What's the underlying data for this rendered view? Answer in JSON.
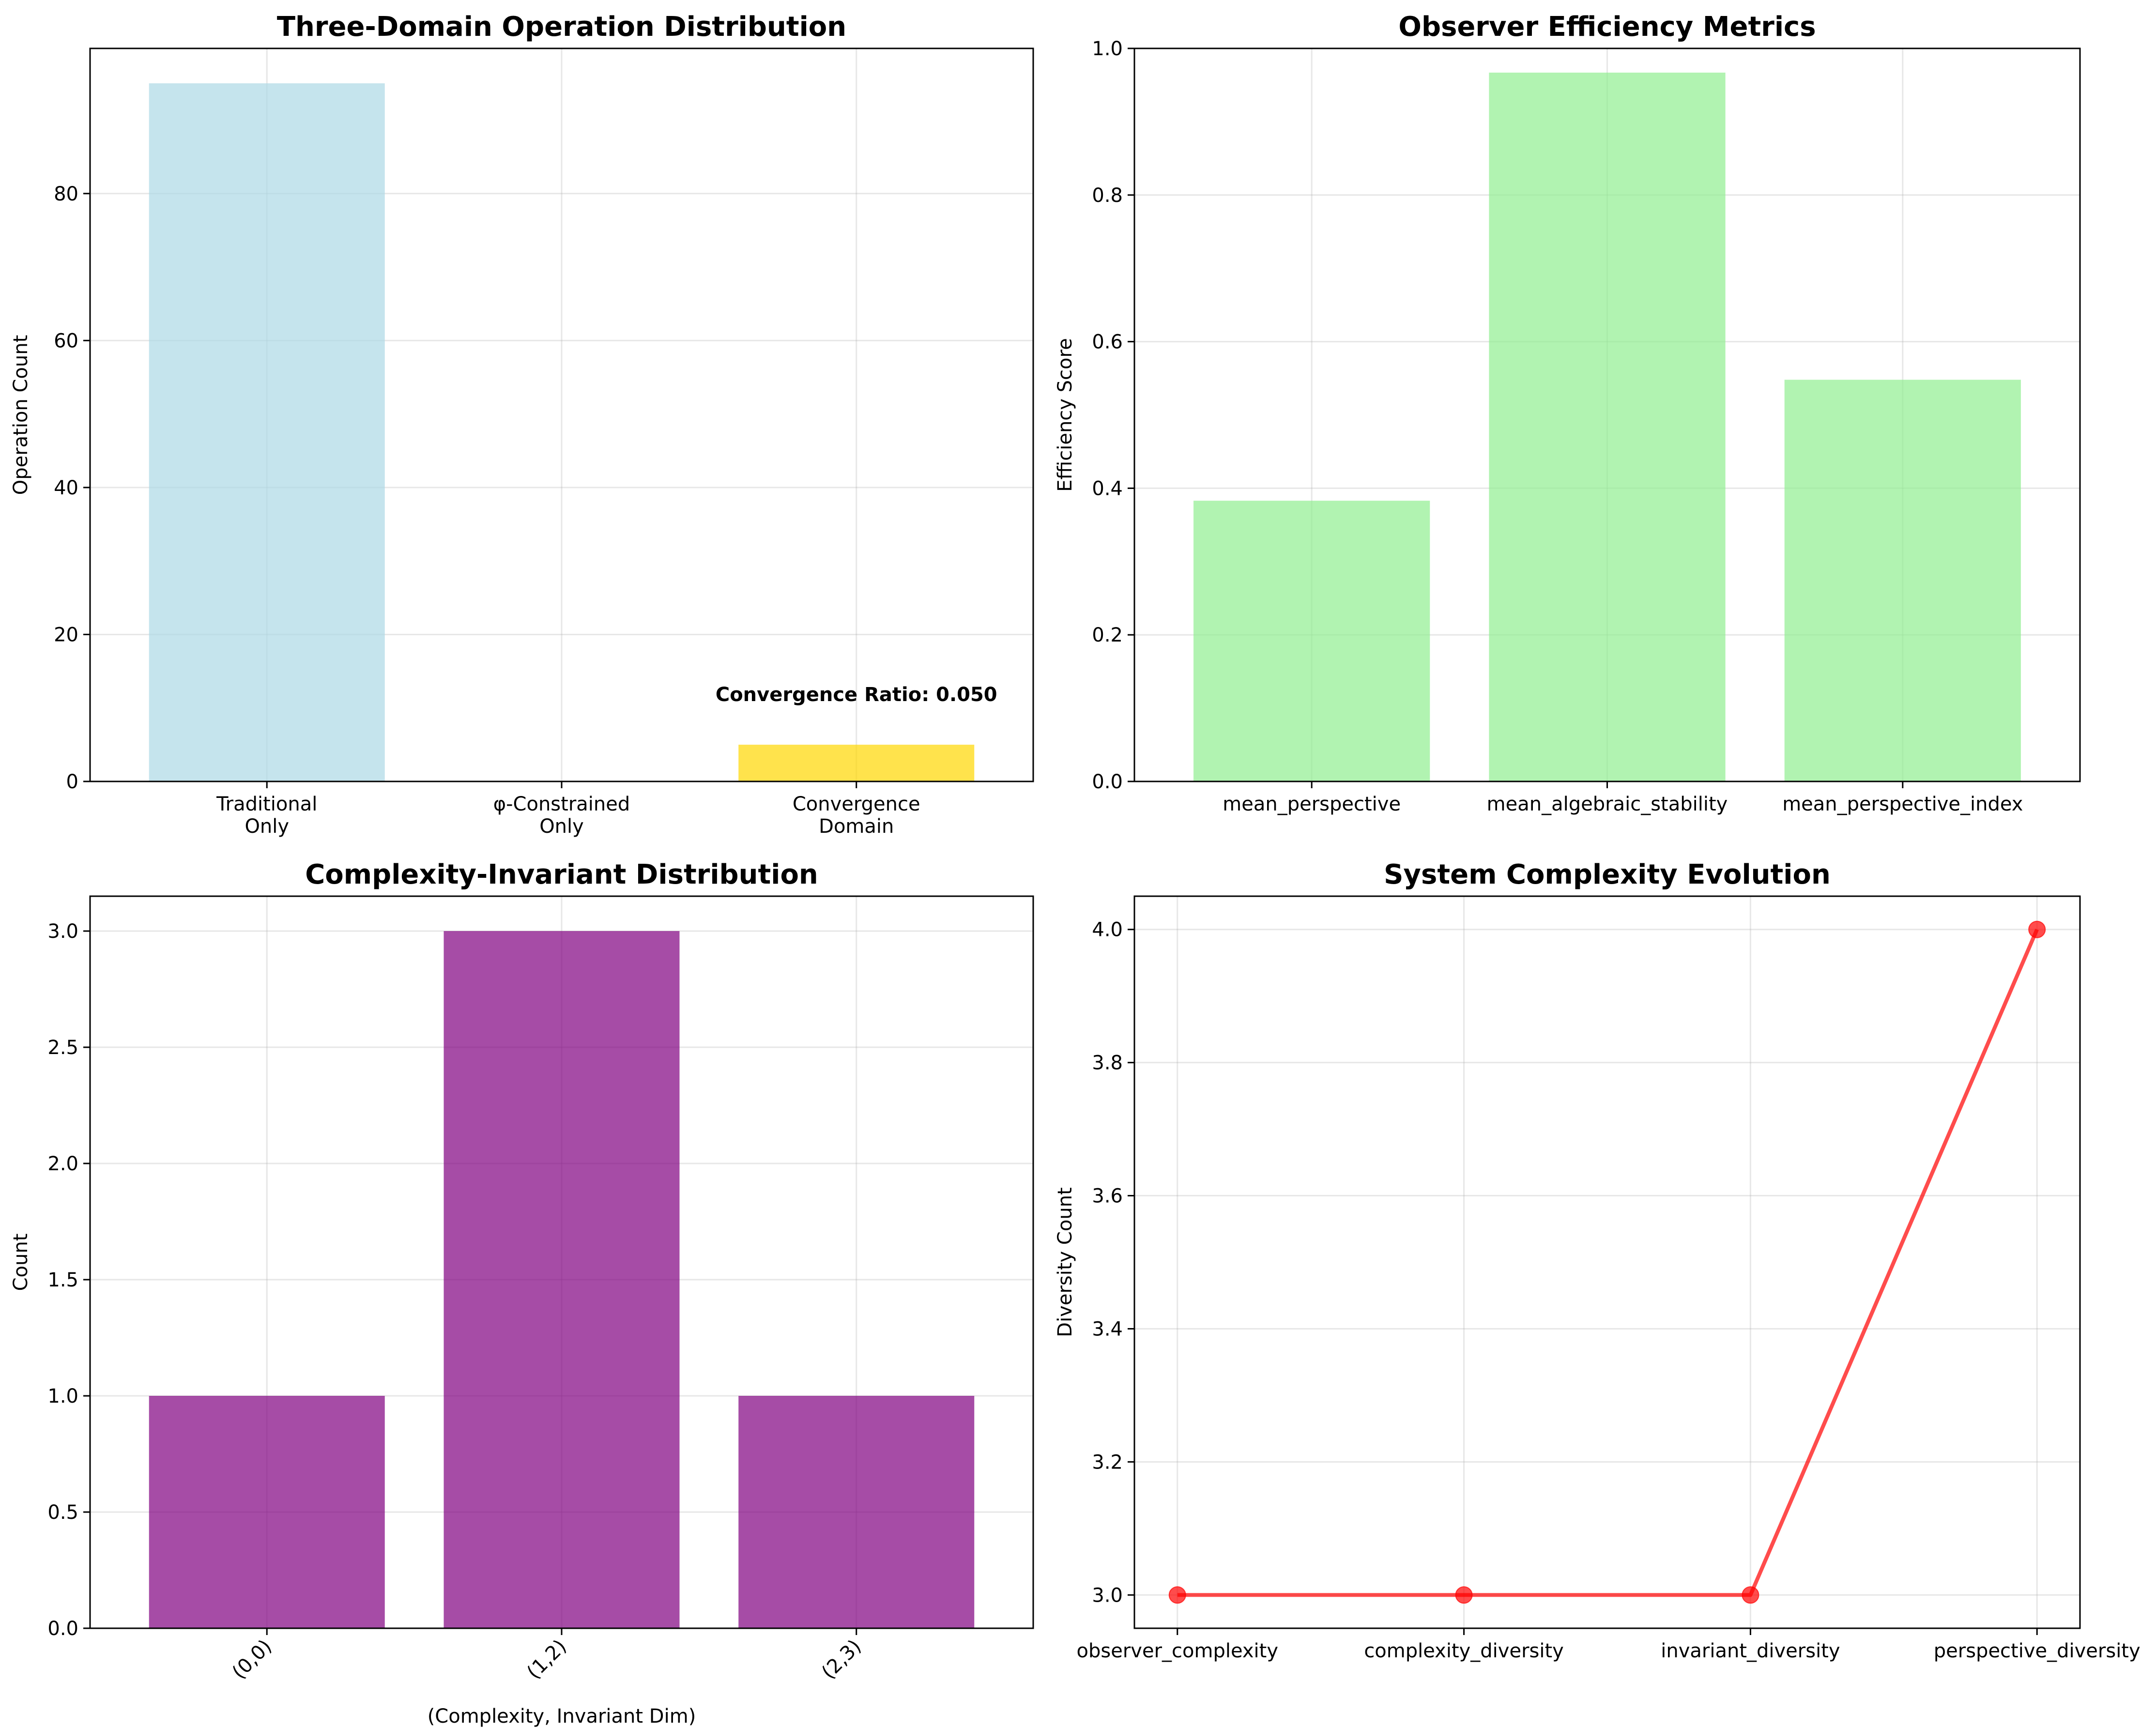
{
  "chart_data": [
    {
      "type": "bar",
      "title": "Three-Domain Operation Distribution",
      "xlabel": "",
      "ylabel": "Operation Count",
      "categories": [
        "Traditional\nOnly",
        "φ-Constrained\nOnly",
        "Convergence\nDomain"
      ],
      "values": [
        95,
        0,
        5
      ],
      "colors": [
        "#add8e6",
        "#87ceeb",
        "#ffd700"
      ],
      "bar_alpha": 0.7,
      "ylim": [
        0,
        99.75
      ],
      "yticks": [
        0,
        20,
        40,
        60,
        80
      ],
      "grid": true,
      "annotation": {
        "text": "Convergence Ratio: 0.050",
        "anchor_category": 2,
        "anchor_value": 10
      }
    },
    {
      "type": "bar",
      "title": "Observer Efficiency Metrics",
      "xlabel": "",
      "ylabel": "Efficiency Score",
      "categories": [
        "mean_perspective",
        "mean_algebraic_stability",
        "mean_perspective_index"
      ],
      "values": [
        0.383,
        0.967,
        0.548
      ],
      "colors": [
        "#90ee90",
        "#90ee90",
        "#90ee90"
      ],
      "bar_alpha": 0.7,
      "ylim": [
        0,
        1.0
      ],
      "yticks": [
        0.0,
        0.2,
        0.4,
        0.6,
        0.8,
        1.0
      ],
      "grid": true
    },
    {
      "type": "bar",
      "title": "Complexity-Invariant Distribution",
      "xlabel": "(Complexity, Invariant Dim)",
      "ylabel": "Count",
      "categories": [
        "(0,0)",
        "(1,2)",
        "(2,3)"
      ],
      "values": [
        1,
        3,
        1
      ],
      "colors": [
        "#800080",
        "#800080",
        "#800080"
      ],
      "bar_alpha": 0.7,
      "ylim": [
        0,
        3.15
      ],
      "yticks": [
        0.0,
        0.5,
        1.0,
        1.5,
        2.0,
        2.5,
        3.0
      ],
      "grid": true,
      "xtick_rotation": 45
    },
    {
      "type": "line",
      "title": "System Complexity Evolution",
      "xlabel": "",
      "ylabel": "Diversity Count",
      "categories": [
        "observer_complexity",
        "complexity_diversity",
        "invariant_diversity",
        "perspective_diversity"
      ],
      "values": [
        3,
        3,
        3,
        4
      ],
      "color": "#ff0000",
      "line_alpha": 0.7,
      "marker": "o",
      "ylim": [
        2.95,
        4.05
      ],
      "yticks": [
        3.0,
        3.2,
        3.4,
        3.6,
        3.8,
        4.0
      ],
      "grid": true
    }
  ]
}
